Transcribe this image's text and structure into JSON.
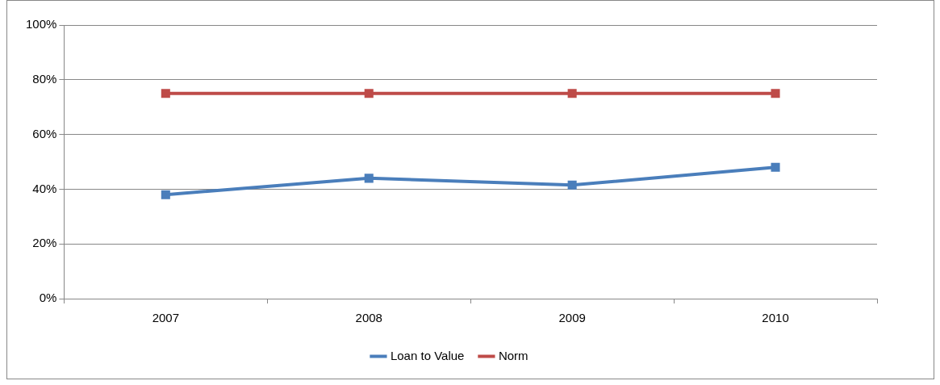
{
  "chart_data": {
    "type": "line",
    "categories": [
      "2007",
      "2008",
      "2009",
      "2010"
    ],
    "series": [
      {
        "name": "Loan to Value",
        "color": "#4a7ebb",
        "values": [
          38,
          44,
          41.5,
          48
        ]
      },
      {
        "name": "Norm",
        "color": "#be4b48",
        "values": [
          75,
          75,
          75,
          75
        ]
      }
    ],
    "ylim": [
      0,
      100
    ],
    "yticks": [
      {
        "value": 0,
        "label": "0%"
      },
      {
        "value": 20,
        "label": "20%"
      },
      {
        "value": 40,
        "label": "40%"
      },
      {
        "value": 60,
        "label": "60%"
      },
      {
        "value": 80,
        "label": "80%"
      },
      {
        "value": 100,
        "label": "100%"
      }
    ],
    "grid": "y",
    "legend": "bottom",
    "marker": "square",
    "line_style": "solid"
  }
}
